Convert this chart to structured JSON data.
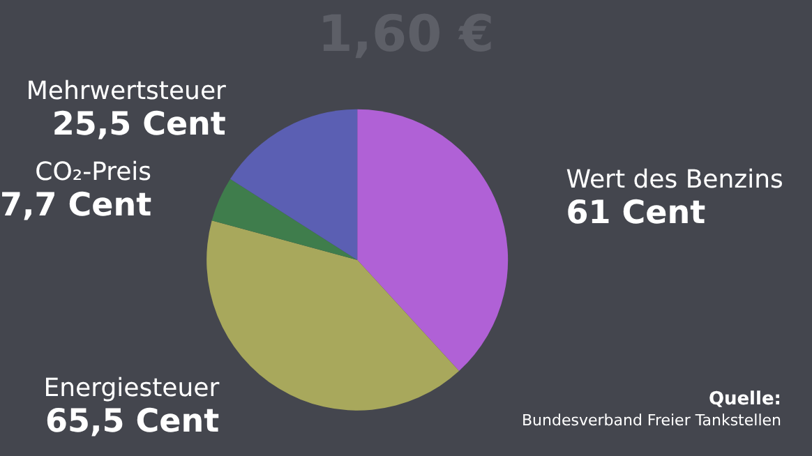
{
  "chart_data": {
    "type": "pie",
    "title": "1,60 €",
    "categories": [
      "Wert des Benzins",
      "Energiesteuer",
      "CO₂-Preis",
      "Mehrwertsteuer"
    ],
    "values": [
      61,
      65.5,
      7.7,
      25.5
    ],
    "value_labels": [
      "61 Cent",
      "65,5 Cent",
      "7,7 Cent",
      "25,5 Cent"
    ],
    "colors": [
      "#b061d6",
      "#a8a85c",
      "#3f7d4c",
      "#5b5fb3"
    ],
    "annotations": [
      "Quelle:",
      "Bundesverband Freier Tankstellen"
    ]
  }
}
